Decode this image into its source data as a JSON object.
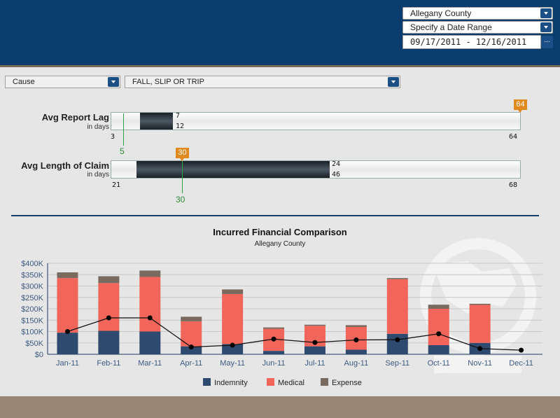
{
  "header": {
    "county_select": "Allegany County",
    "date_mode_select": "Specify a Date Range",
    "date_range": "09/17/2011 - 12/16/2011",
    "date_button": "..."
  },
  "filters": {
    "field": "Cause",
    "value": "FALL, SLIP OR TRIP"
  },
  "report_lag": {
    "label": "Avg Report Lag",
    "unit": "in days",
    "min": "3",
    "max": "64",
    "range_low": "7",
    "range_high": "12",
    "marker_value": "64",
    "green_value": "5"
  },
  "length_claim": {
    "label": "Avg Length of Claim",
    "unit": "in days",
    "min": "21",
    "max": "68",
    "range_low": "24",
    "range_high": "46",
    "marker_value": "30",
    "green_value": "30"
  },
  "chart_data": {
    "type": "bar",
    "title": "Incurred Financial Comparison",
    "subtitle": "Allegany County",
    "categories": [
      "Jan-11",
      "Feb-11",
      "Mar-11",
      "Apr-11",
      "May-11",
      "Jun-11",
      "Jul-11",
      "Aug-11",
      "Sep-11",
      "Oct-11",
      "Nov-11",
      "Dec-11"
    ],
    "y_ticks": [
      "$0",
      "$50K",
      "$100K",
      "$150K",
      "$200K",
      "$250K",
      "$300K",
      "$350K",
      "$400K"
    ],
    "ylim": [
      0,
      400000
    ],
    "series": [
      {
        "name": "Indemnity",
        "color": "#2e4a6e",
        "values": [
          95000,
          103000,
          100000,
          35000,
          45000,
          15000,
          35000,
          20000,
          90000,
          40000,
          50000,
          0
        ]
      },
      {
        "name": "Medical",
        "color": "#f2655a",
        "values": [
          240000,
          210000,
          240000,
          110000,
          220000,
          97000,
          90000,
          100000,
          240000,
          160000,
          167000,
          0
        ]
      },
      {
        "name": "Expense",
        "color": "#786a5e",
        "values": [
          25000,
          30000,
          28000,
          20000,
          20000,
          6000,
          5000,
          8000,
          5000,
          18000,
          5000,
          0
        ]
      }
    ],
    "line_values": [
      100000,
      160000,
      160000,
      32000,
      40000,
      67000,
      52000,
      63000,
      64000,
      90000,
      25000,
      18000
    ],
    "legend": [
      "Indemnity",
      "Medical",
      "Expense"
    ],
    "legend_position": "bottom"
  }
}
